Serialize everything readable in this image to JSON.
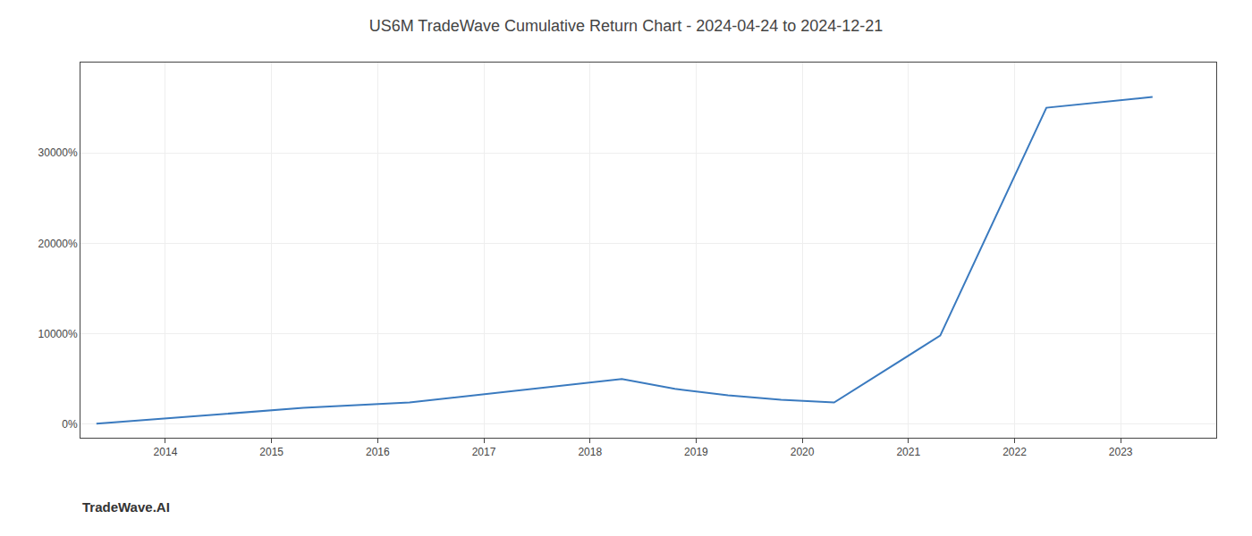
{
  "chart_data": {
    "type": "line",
    "title": "US6M TradeWave Cumulative Return Chart - 2024-04-24 to 2024-12-21",
    "annotations": [
      "TradeWave.AI"
    ],
    "x": [
      2013.35,
      2014.3,
      2015.3,
      2016.3,
      2017.3,
      2018.3,
      2018.8,
      2019.3,
      2019.8,
      2020.3,
      2021.3,
      2022.3,
      2023.3
    ],
    "values": [
      50,
      900,
      1800,
      2400,
      3700,
      5000,
      3900,
      3200,
      2700,
      2400,
      9800,
      35000,
      36200
    ],
    "color": "#3a7abf",
    "xlim": [
      2013.2,
      2023.9
    ],
    "xticks": [
      2014,
      2015,
      2016,
      2017,
      2018,
      2019,
      2020,
      2021,
      2022,
      2023
    ],
    "ylim": [
      -1500,
      40000
    ],
    "yticks": [
      {
        "value": 0,
        "label": "0%"
      },
      {
        "value": 10000,
        "label": "10000%"
      },
      {
        "value": 20000,
        "label": "20000%"
      },
      {
        "value": 30000,
        "label": "30000%"
      }
    ],
    "grid": true
  }
}
